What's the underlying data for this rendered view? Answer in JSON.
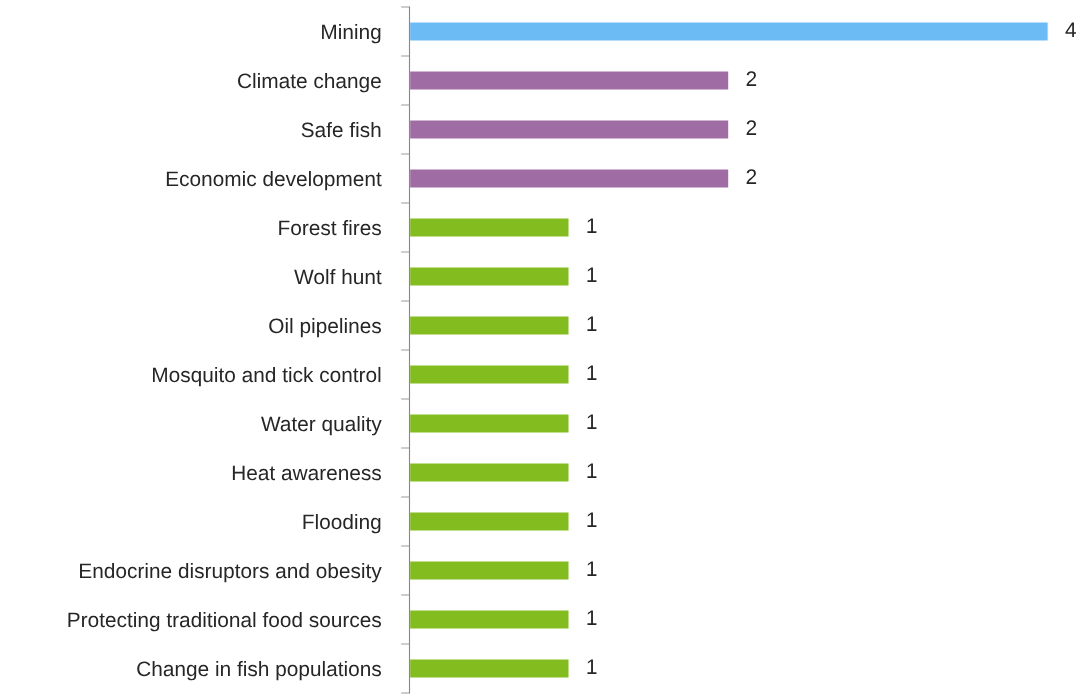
{
  "chart_data": {
    "type": "bar",
    "orientation": "horizontal",
    "categories": [
      "Mining",
      "Climate change",
      "Safe fish",
      "Economic development",
      "Forest fires",
      "Wolf hunt",
      "Oil pipelines",
      "Mosquito and tick control",
      "Water quality",
      "Heat awareness",
      "Flooding",
      "Endocrine disruptors and obesity",
      "Protecting traditional food sources",
      "Change in fish populations"
    ],
    "values": [
      4,
      2,
      2,
      2,
      1,
      1,
      1,
      1,
      1,
      1,
      1,
      1,
      1,
      1
    ],
    "colors": [
      "#6cbbf5",
      "#a06ca4",
      "#a06ca4",
      "#a06ca4",
      "#82bc1e",
      "#82bc1e",
      "#82bc1e",
      "#82bc1e",
      "#82bc1e",
      "#82bc1e",
      "#82bc1e",
      "#82bc1e",
      "#82bc1e",
      "#82bc1e"
    ],
    "data_labels": true,
    "grid": false,
    "legend": false
  }
}
